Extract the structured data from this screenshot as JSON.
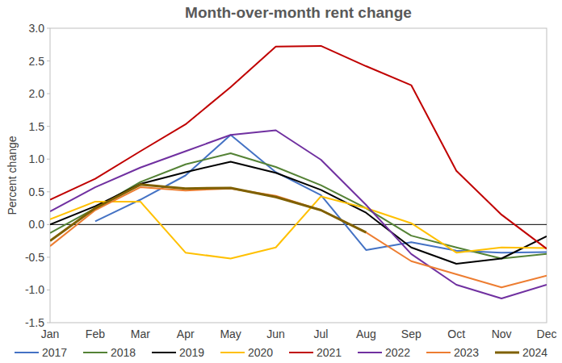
{
  "chart_data": {
    "type": "line",
    "title": "Month-over-month rent change",
    "y_label": "Percent change",
    "categories": [
      "Jan",
      "Feb",
      "Mar",
      "Apr",
      "May",
      "Jun",
      "Jul",
      "Aug",
      "Sep",
      "Oct",
      "Nov",
      "Dec"
    ],
    "ylim": [
      -1.5,
      3.0
    ],
    "yticks": [
      -1.5,
      {
        "value": -1.0,
        "label": "-1.0"
      },
      -0.5,
      {
        "value": 0.0,
        "label": "0.0"
      },
      0.5,
      {
        "value": 1.0,
        "label": "1.0"
      },
      1.5,
      {
        "value": 2.0,
        "label": "2.0"
      },
      2.5,
      {
        "value": 3.0,
        "label": "3.0"
      }
    ],
    "grid": false,
    "legend": "bottom",
    "series": [
      {
        "name": "2017",
        "color": "#4472c4",
        "values": [
          null,
          0.05,
          0.38,
          0.75,
          1.37,
          0.8,
          0.45,
          -0.39,
          -0.27,
          -0.4,
          -0.43,
          -0.42
        ]
      },
      {
        "name": "2018",
        "color": "#548235",
        "values": [
          -0.13,
          0.25,
          0.65,
          0.92,
          1.09,
          0.88,
          0.6,
          0.25,
          -0.17,
          -0.35,
          -0.52,
          -0.45
        ]
      },
      {
        "name": "2019",
        "color": "#000000",
        "values": [
          0.0,
          0.28,
          0.62,
          0.8,
          0.96,
          0.79,
          0.53,
          0.18,
          -0.35,
          -0.6,
          -0.52,
          -0.18
        ]
      },
      {
        "name": "2020",
        "color": "#ffc000",
        "values": [
          0.08,
          0.35,
          0.35,
          -0.43,
          -0.52,
          -0.35,
          0.43,
          0.25,
          0.02,
          -0.43,
          -0.35,
          -0.36
        ]
      },
      {
        "name": "2021",
        "color": "#c00000",
        "values": [
          0.38,
          0.7,
          1.12,
          1.53,
          2.1,
          2.72,
          2.73,
          2.42,
          2.13,
          0.82,
          0.15,
          -0.37
        ]
      },
      {
        "name": "2022",
        "color": "#7030a0",
        "values": [
          0.2,
          0.57,
          0.87,
          1.12,
          1.37,
          1.44,
          0.99,
          0.3,
          -0.45,
          -0.92,
          -1.13,
          -0.92
        ]
      },
      {
        "name": "2023",
        "color": "#ed7d31",
        "values": [
          -0.33,
          0.22,
          0.57,
          0.52,
          0.55,
          0.44,
          0.22,
          -0.12,
          -0.56,
          -0.76,
          -0.96,
          -0.78
        ]
      },
      {
        "name": "2024",
        "color": "#7f6000",
        "values": [
          -0.25,
          0.25,
          0.61,
          0.55,
          0.56,
          0.42,
          0.22,
          -0.12,
          null,
          null,
          null,
          null
        ]
      }
    ]
  }
}
